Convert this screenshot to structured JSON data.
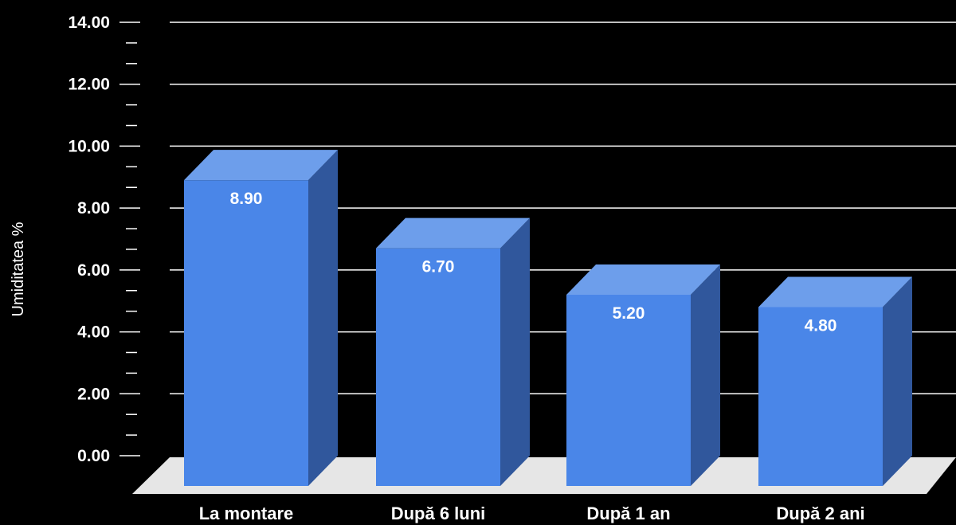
{
  "chart_data": {
    "type": "bar",
    "categories": [
      "La montare",
      "După 6 luni",
      "După 1 an",
      "După 2 ani"
    ],
    "values": [
      8.9,
      6.7,
      5.2,
      4.8
    ],
    "value_labels": [
      "8.90",
      "6.70",
      "5.20",
      "4.80"
    ],
    "title": "",
    "xlabel": "",
    "ylabel": "Umiditatea %",
    "ylim": [
      0,
      14
    ],
    "yticks": [
      0,
      2,
      4,
      6,
      8,
      10,
      12,
      14
    ],
    "ytick_labels": [
      "0.00",
      "2.00",
      "4.00",
      "6.00",
      "8.00",
      "10.00",
      "12.00",
      "14.00"
    ],
    "grid": true,
    "style": "3d",
    "colors": {
      "background": "#000000",
      "bar_front": "#4a86e8",
      "bar_top": "#6d9eeb",
      "bar_side": "#30579c",
      "floor": "#e6e6e6",
      "grid": "#ffffff",
      "text": "#ffffff"
    }
  }
}
